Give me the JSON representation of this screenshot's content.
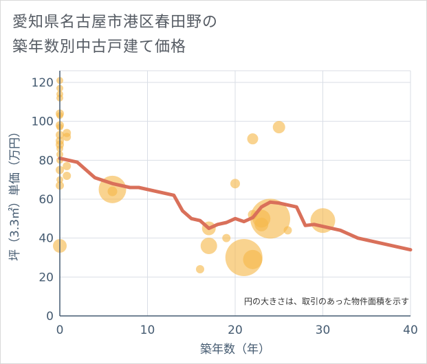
{
  "chart_data": {
    "type": "scatter",
    "title_lines": [
      "愛知県名古屋市港区春田野の",
      "築年数別中古戸建て価格"
    ],
    "xlabel": "築年数（年）",
    "ylabel": "坪（3.3㎡）単価（万円）",
    "xlim": [
      0,
      40
    ],
    "ylim": [
      0,
      126
    ],
    "x_ticks": [
      0,
      10,
      20,
      30,
      40
    ],
    "y_ticks": [
      0,
      20,
      40,
      60,
      80,
      100,
      120
    ],
    "note": "円の大きさは、取引のあった物件面積を示す",
    "colors": {
      "bubble": "#f5b84a",
      "line": "#d9705a",
      "grid": "#d9dee6",
      "axis": "#445a70"
    },
    "bubbles": [
      {
        "x": 0,
        "y": 121,
        "r": 5
      },
      {
        "x": 0,
        "y": 117,
        "r": 5
      },
      {
        "x": 0,
        "y": 114,
        "r": 5
      },
      {
        "x": 0,
        "y": 112,
        "r": 5
      },
      {
        "x": 0,
        "y": 104,
        "r": 6
      },
      {
        "x": 0,
        "y": 103,
        "r": 5
      },
      {
        "x": 0,
        "y": 98,
        "r": 6
      },
      {
        "x": 0,
        "y": 97,
        "r": 5
      },
      {
        "x": 0,
        "y": 93,
        "r": 6
      },
      {
        "x": 0,
        "y": 90,
        "r": 6
      },
      {
        "x": 0,
        "y": 88,
        "r": 6
      },
      {
        "x": 0,
        "y": 86,
        "r": 5
      },
      {
        "x": 0,
        "y": 83,
        "r": 5
      },
      {
        "x": 0,
        "y": 80,
        "r": 5
      },
      {
        "x": 0,
        "y": 75,
        "r": 6
      },
      {
        "x": 0,
        "y": 70,
        "r": 5
      },
      {
        "x": 0,
        "y": 67,
        "r": 6
      },
      {
        "x": 0,
        "y": 36,
        "r": 10
      },
      {
        "x": 0.8,
        "y": 94,
        "r": 6
      },
      {
        "x": 0.8,
        "y": 92,
        "r": 6
      },
      {
        "x": 0.8,
        "y": 77,
        "r": 6
      },
      {
        "x": 0.8,
        "y": 72,
        "r": 6
      },
      {
        "x": 6,
        "y": 65,
        "r": 20
      },
      {
        "x": 6,
        "y": 64,
        "r": 7
      },
      {
        "x": 16,
        "y": 24,
        "r": 6
      },
      {
        "x": 17,
        "y": 45,
        "r": 10
      },
      {
        "x": 17,
        "y": 36,
        "r": 12
      },
      {
        "x": 19,
        "y": 40,
        "r": 6
      },
      {
        "x": 20,
        "y": 68,
        "r": 7
      },
      {
        "x": 21,
        "y": 30,
        "r": 27
      },
      {
        "x": 22,
        "y": 29,
        "r": 14
      },
      {
        "x": 22,
        "y": 91,
        "r": 8
      },
      {
        "x": 22,
        "y": 52,
        "r": 7
      },
      {
        "x": 23,
        "y": 50,
        "r": 13
      },
      {
        "x": 23,
        "y": 47,
        "r": 10
      },
      {
        "x": 24,
        "y": 50,
        "r": 29
      },
      {
        "x": 25,
        "y": 97,
        "r": 9
      },
      {
        "x": 26,
        "y": 44,
        "r": 6
      },
      {
        "x": 30,
        "y": 49,
        "r": 18
      }
    ],
    "trend_line": [
      {
        "x": 0,
        "y": 81
      },
      {
        "x": 2,
        "y": 79
      },
      {
        "x": 4,
        "y": 71
      },
      {
        "x": 6,
        "y": 68
      },
      {
        "x": 8,
        "y": 66
      },
      {
        "x": 9,
        "y": 66
      },
      {
        "x": 11,
        "y": 64
      },
      {
        "x": 13,
        "y": 62
      },
      {
        "x": 14,
        "y": 54
      },
      {
        "x": 15,
        "y": 50
      },
      {
        "x": 16,
        "y": 49
      },
      {
        "x": 17,
        "y": 45
      },
      {
        "x": 18,
        "y": 47
      },
      {
        "x": 19,
        "y": 48
      },
      {
        "x": 20,
        "y": 50
      },
      {
        "x": 21,
        "y": 48.5
      },
      {
        "x": 22,
        "y": 50.5
      },
      {
        "x": 23,
        "y": 56
      },
      {
        "x": 24,
        "y": 58.5
      },
      {
        "x": 25,
        "y": 58
      },
      {
        "x": 27,
        "y": 56
      },
      {
        "x": 28,
        "y": 46.5
      },
      {
        "x": 29,
        "y": 47
      },
      {
        "x": 32,
        "y": 44
      },
      {
        "x": 34,
        "y": 40
      },
      {
        "x": 37,
        "y": 37
      },
      {
        "x": 40,
        "y": 34
      }
    ]
  }
}
